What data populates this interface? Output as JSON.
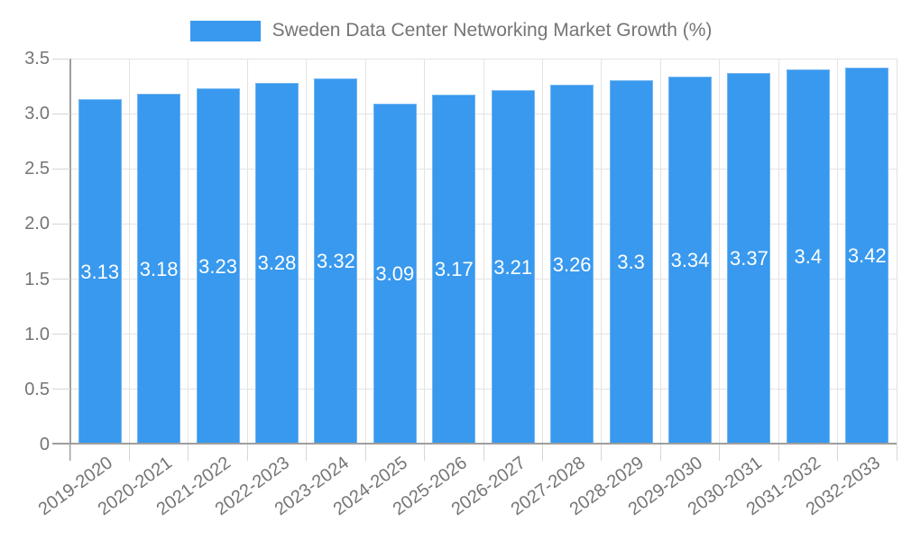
{
  "legend": {
    "label": "Sweden Data Center Networking Market Growth (%)"
  },
  "colors": {
    "bar": "#3899ee",
    "bar_edge": "#72b5f2",
    "grid": "#e3e3e3",
    "axis": "#9e9e9e",
    "tick": "#d6d6d6",
    "axis_text": "#757575",
    "value_label": "#ffffff",
    "background": "#ffffff"
  },
  "y_axis": {
    "tick_labels": [
      "3.5",
      "3.0",
      "2.5",
      "2.0",
      "1.5",
      "1.0",
      "0.5",
      "0"
    ]
  },
  "chart_data": {
    "type": "bar",
    "title": "Sweden Data Center Networking Market Growth (%)",
    "xlabel": "",
    "ylabel": "",
    "categories": [
      "2019-2020",
      "2020-2021",
      "2021-2022",
      "2022-2023",
      "2023-2024",
      "2024-2025",
      "2025-2026",
      "2026-2027",
      "2027-2028",
      "2028-2029",
      "2029-2030",
      "2030-2031",
      "2031-2032",
      "2032-2033"
    ],
    "values": [
      3.13,
      3.18,
      3.23,
      3.28,
      3.32,
      3.09,
      3.17,
      3.21,
      3.26,
      3.3,
      3.34,
      3.37,
      3.4,
      3.42
    ],
    "value_labels": [
      "3.13",
      "3.18",
      "3.23",
      "3.28",
      "3.32",
      "3.09",
      "3.17",
      "3.21",
      "3.26",
      "3.3",
      "3.34",
      "3.37",
      "3.4",
      "3.42"
    ],
    "ylim": [
      0,
      3.5
    ],
    "ytick_step": 0.5,
    "grid": true,
    "legend_position": "top-center"
  }
}
